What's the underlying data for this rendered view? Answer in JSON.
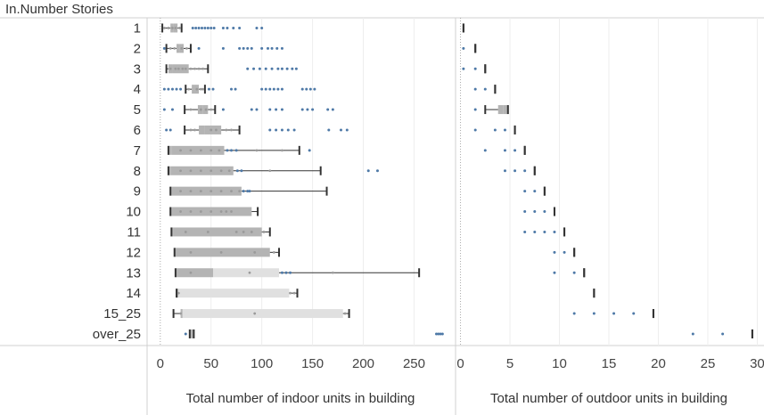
{
  "chart_data": {
    "type": "box",
    "row_header": "In.Number Stories",
    "categories": [
      "1",
      "2",
      "3",
      "4",
      "5",
      "6",
      "7",
      "8",
      "9",
      "10",
      "11",
      "12",
      "13",
      "14",
      "15_25",
      "over_25"
    ],
    "colors": {
      "box_dark": "#b4b4b4",
      "box_light": "#e0e0e0",
      "whisker": "#333333",
      "outlier": "#4e79a7",
      "inner_point": "#9a9a9a",
      "grid": "#eeeeee",
      "divider": "#d0d0d0"
    },
    "panels": [
      {
        "key": "indoor",
        "xlabel": "Total number of indoor units in building",
        "xlim": [
          -13,
          290
        ],
        "ticks": [
          0,
          50,
          100,
          150,
          200,
          250
        ],
        "boxes": [
          {
            "min": 2,
            "q1": 10,
            "median": 13,
            "q3": 17,
            "max": 21,
            "points": [
              4,
              8,
              12,
              15,
              19
            ],
            "outliers": [
              32,
              35,
              38,
              41,
              44,
              47,
              50,
              53,
              62,
              66,
              72,
              78,
              95,
              100
            ]
          },
          {
            "min": 6,
            "q1": 16,
            "median": 19,
            "q3": 23,
            "max": 30,
            "points": [
              10,
              14,
              21,
              26
            ],
            "outliers": [
              4,
              38,
              62,
              78,
              82,
              86,
              90,
              100,
              106,
              110,
              115,
              120
            ]
          },
          {
            "min": 6,
            "q1": 8,
            "median": 12,
            "q3": 28,
            "max": 47,
            "points": [
              10,
              15,
              18,
              22,
              25,
              30,
              34,
              38,
              42
            ],
            "outliers": [
              86,
              92,
              98,
              104,
              110,
              116,
              120,
              125,
              130,
              134
            ]
          },
          {
            "min": 25,
            "q1": 31,
            "median": 34,
            "q3": 38,
            "max": 44,
            "points": [
              28,
              36,
              40,
              42
            ],
            "outliers": [
              4,
              8,
              12,
              16,
              20,
              48,
              52,
              70,
              74,
              100,
              104,
              108,
              112,
              116,
              120,
              140,
              144,
              148,
              152
            ]
          },
          {
            "min": 24,
            "q1": 37,
            "median": 42,
            "q3": 47,
            "max": 54,
            "points": [
              30,
              40,
              45,
              50
            ],
            "outliers": [
              4,
              12,
              62,
              90,
              95,
              108,
              114,
              120,
              140,
              145,
              150,
              165,
              170
            ]
          },
          {
            "min": 24,
            "q1": 38,
            "median": 44,
            "q3": 60,
            "max": 78,
            "points": [
              30,
              34,
              50,
              55,
              65,
              70
            ],
            "outliers": [
              6,
              10,
              108,
              114,
              120,
              126,
              132,
              166,
              178,
              184
            ]
          },
          {
            "min": 8,
            "q1": 8,
            "median": 11,
            "q3": 63,
            "max": 137,
            "points": [
              20,
              30,
              40,
              50,
              58,
              95,
              120
            ],
            "outliers": [
              66,
              70,
              75,
              147
            ]
          },
          {
            "min": 8,
            "q1": 8,
            "median": 10,
            "q3": 72,
            "max": 158,
            "points": [
              20,
              30,
              40,
              50,
              60,
              68,
              108
            ],
            "outliers": [
              76,
              80,
              205,
              214
            ]
          },
          {
            "min": 10,
            "q1": 10,
            "median": 12,
            "q3": 80,
            "max": 164,
            "points": [
              20,
              30,
              40,
              50,
              60,
              70,
              78
            ],
            "outliers": [
              82,
              86,
              88
            ]
          },
          {
            "min": 10,
            "q1": 10,
            "median": 12,
            "q3": 90,
            "max": 96,
            "points": [
              20,
              30,
              40,
              50,
              60,
              65,
              70
            ],
            "outliers": []
          },
          {
            "min": 11,
            "q1": 11,
            "median": 13,
            "q3": 100,
            "max": 108,
            "points": [
              25,
              47,
              75,
              82,
              90,
              102
            ],
            "outliers": []
          },
          {
            "min": 14,
            "q1": 14,
            "median": 16,
            "q3": 108,
            "max": 117,
            "points": [
              30,
              60,
              93,
              112
            ],
            "outliers": []
          },
          {
            "min": 15,
            "q1": 15,
            "median": 52,
            "q3": 117,
            "max": 255,
            "points": [
              30,
              88,
              170
            ],
            "outliers": [
              120,
              124,
              128
            ]
          },
          {
            "min": 16,
            "q1": 16,
            "median": 18,
            "q3": 127,
            "max": 135,
            "points": [
              18,
              128,
              132
            ],
            "outliers": []
          },
          {
            "min": 13,
            "q1": 20,
            "median": 22,
            "q3": 180,
            "max": 186,
            "points": [
              20,
              93,
              182
            ],
            "outliers": []
          },
          {
            "min": 29,
            "q1": 29,
            "median": 31,
            "q3": 33,
            "max": 33,
            "points": [],
            "outliers": [
              25,
              272,
              274,
              276,
              278
            ]
          }
        ]
      },
      {
        "key": "outdoor",
        "xlabel": "Total number of outdoor units in building",
        "xlim": [
          -0.5,
          30.5
        ],
        "ticks": [
          0,
          5,
          10,
          15,
          20,
          25,
          30
        ],
        "boxes": [
          {
            "min": 0.3,
            "q1": 0.3,
            "median": 0.3,
            "q3": 0.3,
            "max": 0.3,
            "points": [],
            "outliers": []
          },
          {
            "min": 1.5,
            "q1": 1.5,
            "median": 1.5,
            "q3": 1.5,
            "max": 1.5,
            "points": [],
            "outliers": [
              0.3
            ]
          },
          {
            "min": 2.5,
            "q1": 2.5,
            "median": 2.5,
            "q3": 2.5,
            "max": 2.5,
            "points": [],
            "outliers": [
              0.3,
              1.5
            ]
          },
          {
            "min": 3.5,
            "q1": 3.5,
            "median": 3.5,
            "q3": 3.5,
            "max": 3.5,
            "points": [],
            "outliers": [
              1.5,
              2.5
            ]
          },
          {
            "min": 2.5,
            "q1": 3.8,
            "median": 4.3,
            "q3": 4.8,
            "max": 4.8,
            "points": [],
            "outliers": [
              1.5
            ]
          },
          {
            "min": 5.5,
            "q1": 5.5,
            "median": 5.5,
            "q3": 5.5,
            "max": 5.5,
            "points": [],
            "outliers": [
              1.5,
              3.5,
              4.5
            ]
          },
          {
            "min": 6.5,
            "q1": 6.5,
            "median": 6.5,
            "q3": 6.5,
            "max": 6.5,
            "points": [],
            "outliers": [
              2.5,
              4.5,
              5.5
            ]
          },
          {
            "min": 7.5,
            "q1": 7.5,
            "median": 7.5,
            "q3": 7.5,
            "max": 7.5,
            "points": [],
            "outliers": [
              4.5,
              5.5,
              6.5
            ]
          },
          {
            "min": 8.5,
            "q1": 8.5,
            "median": 8.5,
            "q3": 8.5,
            "max": 8.5,
            "points": [],
            "outliers": [
              6.5,
              7.5
            ]
          },
          {
            "min": 9.5,
            "q1": 9.5,
            "median": 9.5,
            "q3": 9.5,
            "max": 9.5,
            "points": [],
            "outliers": [
              6.5,
              7.5,
              8.5
            ]
          },
          {
            "min": 10.5,
            "q1": 10.5,
            "median": 10.5,
            "q3": 10.5,
            "max": 10.5,
            "points": [],
            "outliers": [
              6.5,
              7.5,
              8.5,
              9.5
            ]
          },
          {
            "min": 11.5,
            "q1": 11.5,
            "median": 11.5,
            "q3": 11.5,
            "max": 11.5,
            "points": [],
            "outliers": [
              9.5,
              10.5
            ]
          },
          {
            "min": 12.5,
            "q1": 12.5,
            "median": 12.5,
            "q3": 12.5,
            "max": 12.5,
            "points": [],
            "outliers": [
              9.5,
              11.5
            ]
          },
          {
            "min": 13.5,
            "q1": 13.5,
            "median": 13.5,
            "q3": 13.5,
            "max": 13.5,
            "points": [],
            "outliers": []
          },
          {
            "min": 19.5,
            "q1": 19.5,
            "median": 19.5,
            "q3": 19.5,
            "max": 19.5,
            "points": [],
            "outliers": [
              11.5,
              13.5,
              15.5,
              17.5
            ]
          },
          {
            "min": 29.5,
            "q1": 29.5,
            "median": 29.5,
            "q3": 29.5,
            "max": 29.5,
            "points": [],
            "outliers": [
              23.5,
              26.5
            ]
          }
        ]
      }
    ]
  }
}
